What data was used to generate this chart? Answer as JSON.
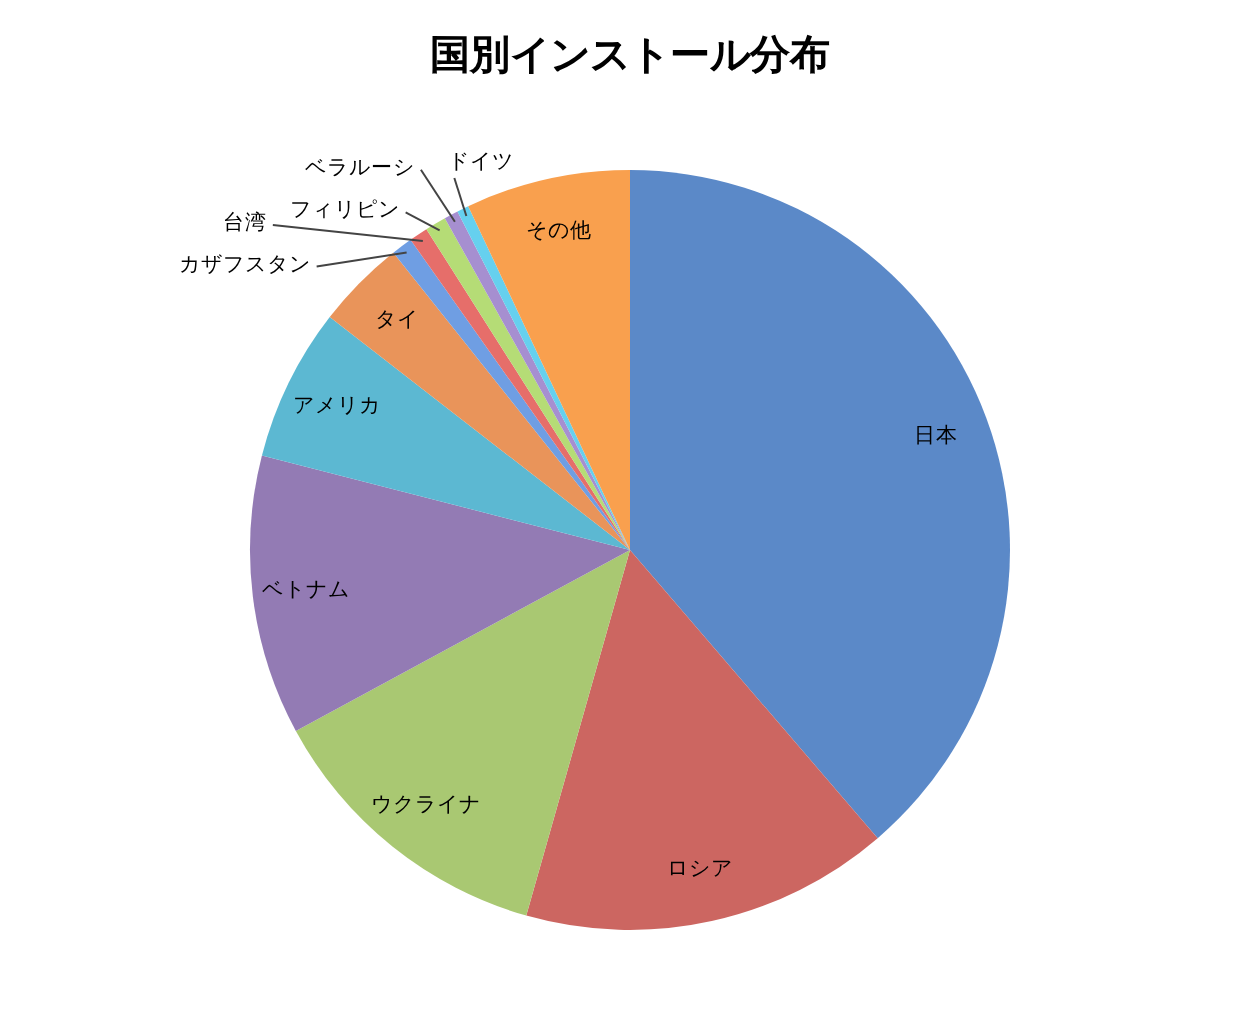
{
  "chart_data": {
    "type": "pie",
    "title": "国別インストール分布",
    "categories": [
      "日本",
      "ロシア",
      "ウクライナ",
      "ベトナム",
      "アメリカ",
      "タイ",
      "カザフスタン",
      "台湾",
      "フィリピン",
      "ベラルーシ",
      "ドイツ",
      "その他"
    ],
    "values": [
      38.7,
      15.7,
      12.7,
      11.9,
      6.5,
      3.8,
      0.9,
      0.8,
      0.9,
      0.6,
      0.5,
      7.0
    ],
    "colors": [
      "#5b89c8",
      "#cc6661",
      "#a9c872",
      "#937bb4",
      "#5cb8d2",
      "#e9945a",
      "#6f9ee3",
      "#e66e6a",
      "#b5dc76",
      "#a68fd0",
      "#66d0ee",
      "#f9a04e"
    ]
  }
}
